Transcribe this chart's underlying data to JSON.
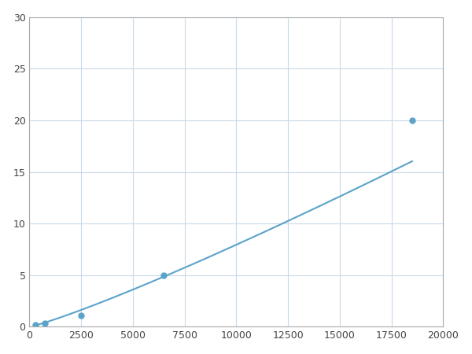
{
  "x_points": [
    300,
    750,
    2500,
    6500,
    18500
  ],
  "y_points": [
    0.2,
    0.35,
    1.1,
    5.0,
    20.0
  ],
  "line_color": "#5ba3c9",
  "marker_color": "#5ba3c9",
  "marker_size": 5,
  "line_width": 1.5,
  "xlim": [
    0,
    20000
  ],
  "ylim": [
    0,
    30
  ],
  "xticks": [
    0,
    2500,
    5000,
    7500,
    10000,
    12500,
    15000,
    17500,
    20000
  ],
  "yticks": [
    0,
    5,
    10,
    15,
    20,
    25,
    30
  ],
  "grid_color": "#c8daea",
  "background_color": "#ffffff",
  "figure_bg": "#ffffff",
  "tick_labelsize": 9,
  "spine_color": "#aaaaaa"
}
